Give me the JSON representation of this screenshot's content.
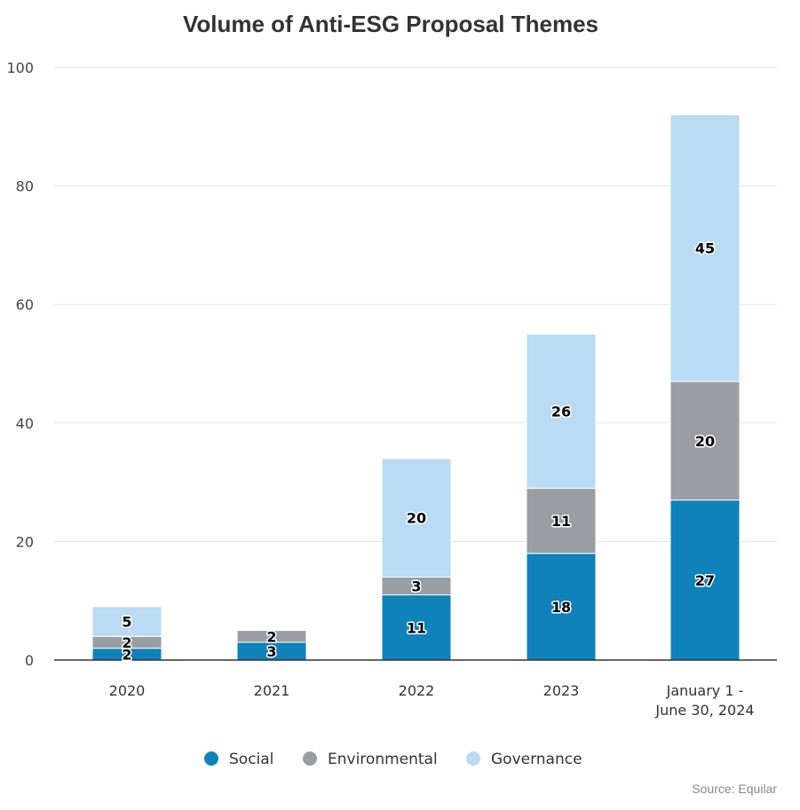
{
  "chart_data": {
    "type": "bar",
    "stacked": true,
    "title": "Volume of Anti-ESG Proposal Themes",
    "categories": [
      [
        "2020"
      ],
      [
        "2021"
      ],
      [
        "2022"
      ],
      [
        "2023"
      ],
      [
        "January 1 -",
        "June 30, 2024"
      ]
    ],
    "series": [
      {
        "name": "Social",
        "color": "#0f82b9",
        "values": [
          2,
          3,
          11,
          18,
          27
        ]
      },
      {
        "name": "Environmental",
        "color": "#989ea2",
        "values": [
          2,
          2,
          3,
          11,
          20
        ]
      },
      {
        "name": "Governance",
        "color": "#b9dbf3",
        "values": [
          5,
          0,
          20,
          26,
          45
        ]
      }
    ],
    "ylim": [
      0,
      100
    ],
    "yticks": [
      0,
      20,
      40,
      60,
      80,
      100
    ],
    "grid": true,
    "legend": "bottom-center",
    "source": "Source: Equilar"
  }
}
